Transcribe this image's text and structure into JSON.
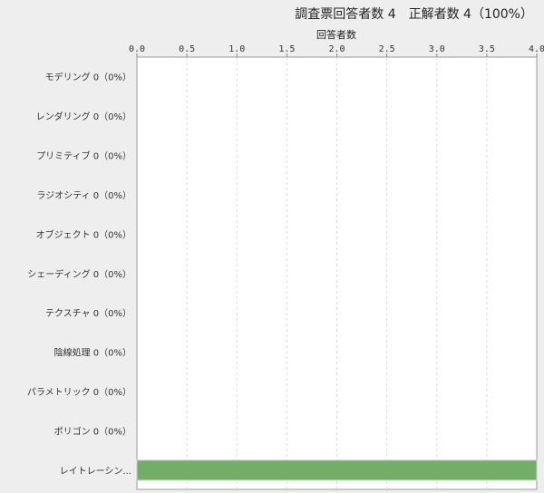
{
  "chart_data": {
    "type": "bar",
    "orientation": "horizontal",
    "title": "調査票回答者数 4　正解者数 4（100%）",
    "xlabel": "回答者数",
    "ylabel": "",
    "xlim": [
      0,
      4
    ],
    "xticks": [
      "0.0",
      "0.5",
      "1.0",
      "1.5",
      "2.0",
      "2.5",
      "3.0",
      "3.5",
      "4.0"
    ],
    "grid": true,
    "categories": [
      "モデリング 0（0%）",
      "レンダリング 0（0%）",
      "プリミティブ 0（0%）",
      "ラジオシティ 0（0%）",
      "オブジェクト 0（0%）",
      "シェーディング 0（0%）",
      "テクスチャ 0（0%）",
      "陰線処理 0（0%）",
      "パラメトリック 0（0%）",
      "ポリゴン 0（0%）",
      "レイトレーシン..."
    ],
    "values": [
      0,
      0,
      0,
      0,
      0,
      0,
      0,
      0,
      0,
      0,
      4
    ],
    "bar_color": "#72ae68"
  }
}
